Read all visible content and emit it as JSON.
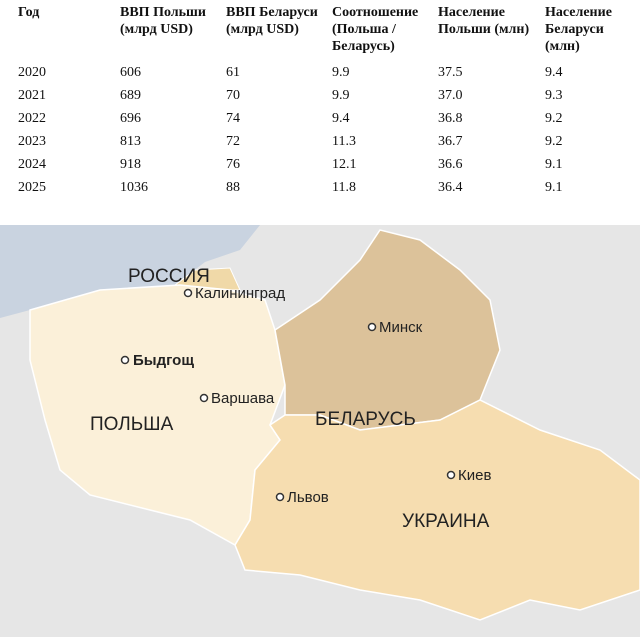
{
  "table": {
    "header": [
      "Год",
      "ВВП Польши (млрд USD)",
      "ВВП Беларуси (млрд USD)",
      "Соотношение (Польша / Беларусь)",
      "Население Польши (млн)",
      "Население Беларуси (млн)"
    ],
    "rows": [
      [
        "2020",
        "606",
        "61",
        "9.9",
        "37.5",
        "9.4"
      ],
      [
        "2021",
        "689",
        "70",
        "9.9",
        "37.0",
        "9.3"
      ],
      [
        "2022",
        "696",
        "74",
        "9.4",
        "36.8",
        "9.2"
      ],
      [
        "2023",
        "813",
        "72",
        "11.3",
        "36.7",
        "9.2"
      ],
      [
        "2024",
        "918",
        "76",
        "12.1",
        "36.6",
        "9.1"
      ],
      [
        "2025",
        "1036",
        "88",
        "11.8",
        "36.4",
        "9.1"
      ]
    ]
  },
  "map": {
    "labels": {
      "russia": "РОССИЯ",
      "kaliningrad": "Калининград",
      "minsk": "Минск",
      "bydgoszcz": "Быдгощ",
      "warsaw": "Варшава",
      "poland": "ПОЛЬША",
      "belarus": "БЕЛАРУСЬ",
      "kyiv": "Киев",
      "lviv": "Львов",
      "ukraine": "УКРАИНА"
    }
  }
}
